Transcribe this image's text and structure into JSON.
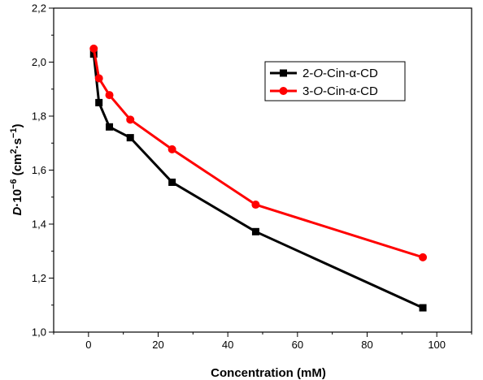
{
  "chart_data": {
    "type": "line",
    "title": "",
    "xlabel": "Concentration (mM)",
    "ylabel_parts": [
      "D",
      "·10",
      "−6",
      " (cm",
      "2",
      "·s",
      "−1",
      ")"
    ],
    "xlim": [
      -10,
      110
    ],
    "ylim": [
      1.0,
      2.2
    ],
    "x_ticks": [
      0,
      20,
      40,
      60,
      80,
      100
    ],
    "x_tick_labels": [
      "0",
      "20",
      "40",
      "60",
      "80",
      "100"
    ],
    "y_ticks": [
      1.0,
      1.2,
      1.4,
      1.6,
      1.8,
      2.0,
      2.2
    ],
    "y_tick_labels": [
      "1,0",
      "1,2",
      "1,4",
      "1,6",
      "1,8",
      "2,0",
      "2,2"
    ],
    "grid": false,
    "legend_position": "top-right",
    "series": [
      {
        "name": "2-O-Cin-α-CD",
        "legend_parts": [
          "2-",
          "O",
          "-Cin-α-CD"
        ],
        "color": "#000000",
        "marker": "square",
        "x": [
          1.5,
          3,
          6,
          12,
          24,
          48,
          96
        ],
        "y": [
          2.03,
          1.85,
          1.76,
          1.72,
          1.555,
          1.372,
          1.09
        ]
      },
      {
        "name": "3-O-Cin-α-CD",
        "legend_parts": [
          "3-",
          "O",
          "-Cin-α-CD"
        ],
        "color": "#ff0000",
        "marker": "circle",
        "x": [
          1.5,
          3,
          6,
          12,
          24,
          48,
          96
        ],
        "y": [
          2.05,
          1.94,
          1.878,
          1.787,
          1.677,
          1.472,
          1.277
        ]
      }
    ]
  }
}
